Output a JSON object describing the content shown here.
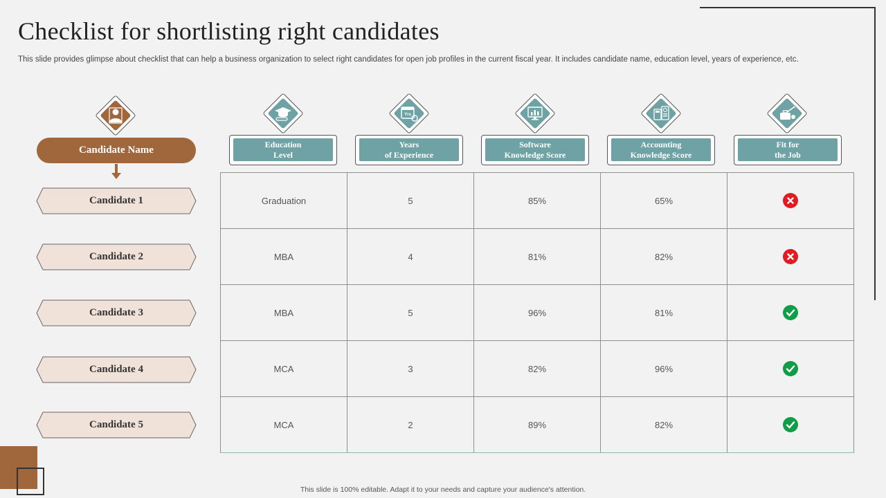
{
  "title": "Checklist for shortlisting right candidates",
  "subtitle": "This slide provides glimpse about checklist that can help a business organization to select right candidates for open job profiles in the current fiscal year.  It includes candidate name, education level, years of experience, etc.",
  "footer": "This slide is 100% editable.  Adapt it to your needs and capture your audience's attention.",
  "colors": {
    "accent_brown": "#a0663c",
    "teal": "#6fa2a4",
    "candidate_fill": "#f1e2d9",
    "fail_red": "#e21b23",
    "pass_green": "#0f9d47"
  },
  "candidate_header": {
    "label": "Candidate Name",
    "icon": "user-icon"
  },
  "candidates": [
    "Candidate  1",
    "Candidate  2",
    "Candidate  3",
    "Candidate  4",
    "Candidate  5"
  ],
  "columns": [
    {
      "label": "Education\nLevel",
      "icon": "graduation-cap-icon"
    },
    {
      "label": "Years\nof Experience",
      "icon": "calendar-years-icon"
    },
    {
      "label": "Software\nKnowledge  Score",
      "icon": "computer-chart-icon"
    },
    {
      "label": "Accounting\nKnowledge  Score",
      "icon": "calculator-icon"
    },
    {
      "label": "Fit for\nthe Job",
      "icon": "briefcase-icon"
    }
  ],
  "rows": [
    {
      "education": "Graduation",
      "years": "5",
      "software": "85%",
      "accounting": "65%",
      "fit": "no"
    },
    {
      "education": "MBA",
      "years": "4",
      "software": "81%",
      "accounting": "82%",
      "fit": "no"
    },
    {
      "education": "MBA",
      "years": "5",
      "software": "96%",
      "accounting": "81%",
      "fit": "yes"
    },
    {
      "education": "MCA",
      "years": "3",
      "software": "82%",
      "accounting": "96%",
      "fit": "yes"
    },
    {
      "education": "MCA",
      "years": "2",
      "software": "89%",
      "accounting": "82%",
      "fit": "yes"
    }
  ]
}
